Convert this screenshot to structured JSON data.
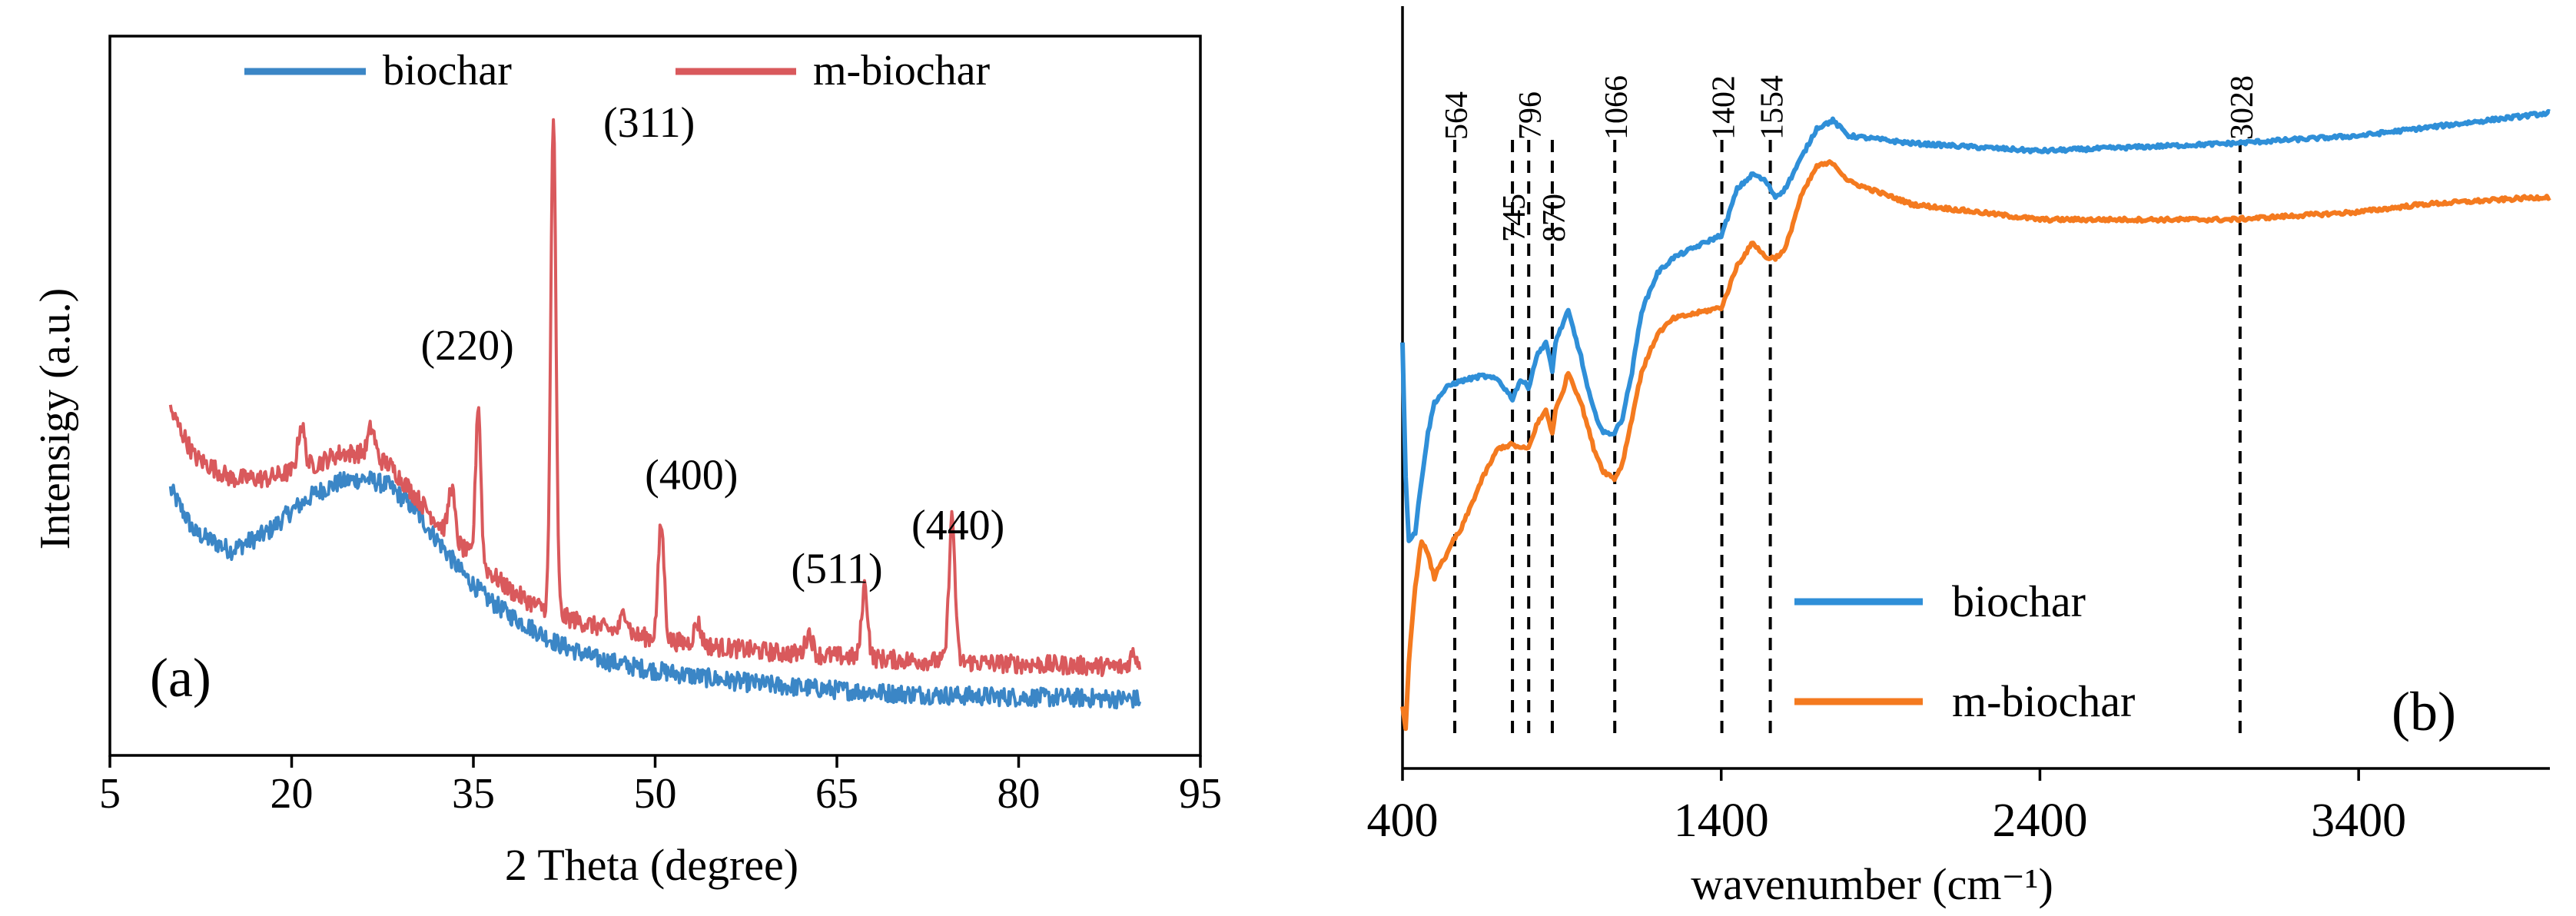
{
  "colors": {
    "axis": "#000000",
    "biochar_a": "#3b86c6",
    "m_biochar_a": "#d9595c",
    "biochar_b": "#2f8fd8",
    "m_biochar_b": "#f47a1f"
  },
  "chart_data": [
    {
      "panel_label": "(a)",
      "type": "line",
      "title": "",
      "xlabel": "2 Theta (degree)",
      "ylabel": "Intensigy (a.u.)",
      "xlim": [
        5,
        95
      ],
      "ylim": [
        0,
        100
      ],
      "xticks": [
        5,
        20,
        35,
        50,
        65,
        80,
        95
      ],
      "grid": false,
      "legend_position": "top",
      "yticks_shown": false,
      "series": [
        {
          "name": "biochar",
          "color_key": "biochar_a",
          "noisy": true,
          "x": [
            10,
            12,
            15,
            18,
            20,
            22,
            24,
            26,
            28,
            30,
            32,
            34,
            36,
            38,
            40,
            42,
            45,
            48,
            50,
            55,
            60,
            65,
            70,
            75,
            80,
            85,
            90
          ],
          "y": [
            37,
            31,
            28.5,
            31,
            34,
            36.5,
            38,
            38.5,
            37.5,
            34.5,
            30,
            25.5,
            22,
            19.5,
            17.5,
            15.5,
            13.5,
            12.4,
            11.8,
            10.6,
            9.7,
            9.1,
            8.6,
            8.3,
            8.1,
            8,
            7.8
          ]
        },
        {
          "name": "m-biochar",
          "color_key": "m_biochar_a",
          "noisy": true,
          "x": [
            10,
            12,
            15,
            18,
            20,
            22,
            24,
            26,
            28,
            30,
            32,
            34,
            36,
            38,
            40,
            42,
            45,
            48,
            50,
            55,
            60,
            65,
            70,
            75,
            80,
            85,
            90
          ],
          "y": [
            48,
            41.5,
            38.5,
            38.5,
            39.5,
            40.5,
            42,
            42,
            40.5,
            36.5,
            32.5,
            29,
            26,
            23,
            21,
            19.5,
            18,
            16.8,
            16.2,
            15.1,
            14.3,
            13.8,
            13.3,
            13,
            12.7,
            12.5,
            12.2
          ]
        }
      ],
      "peaks": [
        {
          "series": "m-biochar",
          "x": 20.8,
          "height": 6,
          "width": 0.4
        },
        {
          "series": "m-biochar",
          "x": 26.6,
          "height": 4,
          "width": 0.4
        },
        {
          "series": "m-biochar",
          "x": 33.2,
          "height": 7,
          "width": 0.35
        },
        {
          "series": "m-biochar",
          "x": 35.4,
          "height": 22,
          "width": 0.3
        },
        {
          "series": "m-biochar",
          "x": 41.6,
          "height": 69,
          "width": 0.3
        },
        {
          "series": "m-biochar",
          "x": 47.5,
          "height": 3,
          "width": 0.4
        },
        {
          "series": "m-biochar",
          "x": 50.5,
          "height": 16,
          "width": 0.35
        },
        {
          "series": "m-biochar",
          "x": 53.5,
          "height": 3,
          "width": 0.4
        },
        {
          "series": "m-biochar",
          "x": 62.7,
          "height": 3,
          "width": 0.4
        },
        {
          "series": "m-biochar",
          "x": 67.3,
          "height": 10,
          "width": 0.35
        },
        {
          "series": "m-biochar",
          "x": 74.5,
          "height": 20,
          "width": 0.35
        },
        {
          "series": "m-biochar",
          "x": 89.5,
          "height": 2,
          "width": 0.4
        }
      ],
      "annotations": [
        {
          "text": "(311)",
          "x": 49.5,
          "y": 86
        },
        {
          "text": "(220)",
          "x": 34.5,
          "y": 55
        },
        {
          "text": "(400)",
          "x": 53,
          "y": 37
        },
        {
          "text": "(511)",
          "x": 65,
          "y": 24
        },
        {
          "text": "(440)",
          "x": 75,
          "y": 30
        }
      ]
    },
    {
      "panel_label": "(b)",
      "type": "line",
      "title": "",
      "xlabel": "wavenumber (cm⁻¹)",
      "ylabel": "",
      "xlim": [
        400,
        4000
      ],
      "ylim": [
        0,
        100
      ],
      "xticks": [
        400,
        1400,
        2400,
        3400
      ],
      "grid": false,
      "legend_position": "bottom-right",
      "yticks_shown": false,
      "series": [
        {
          "name": "biochar",
          "color_key": "biochar_b",
          "noisy": false,
          "x": [
            400,
            410,
            420,
            440,
            460,
            480,
            500,
            520,
            540,
            560,
            600,
            650,
            700,
            745,
            770,
            796,
            820,
            850,
            870,
            880,
            900,
            920,
            940,
            960,
            980,
            1000,
            1030,
            1066,
            1090,
            1120,
            1150,
            1200,
            1250,
            1300,
            1350,
            1402,
            1450,
            1500,
            1540,
            1570,
            1600,
            1650,
            1700,
            1750,
            1800,
            2000,
            2400,
            3000,
            3400,
            3600,
            4000
          ],
          "y": [
            56,
            38,
            30,
            31,
            38,
            44,
            48,
            49,
            50,
            50.5,
            51,
            51.5,
            51,
            48.5,
            51,
            50,
            54,
            56,
            52,
            56,
            58,
            60,
            57,
            54,
            50,
            47,
            44,
            44,
            46,
            52,
            60,
            65,
            67,
            68,
            69,
            70,
            76,
            78,
            77,
            75,
            76,
            80,
            84,
            85,
            83,
            82,
            81,
            82,
            83,
            84,
            86
          ]
        },
        {
          "name": "m-biochar",
          "color_key": "m_biochar_b",
          "noisy": false,
          "x": [
            400,
            410,
            420,
            440,
            460,
            480,
            500,
            520,
            540,
            560,
            580,
            600,
            650,
            700,
            745,
            770,
            796,
            820,
            850,
            870,
            880,
            900,
            920,
            940,
            960,
            980,
            1000,
            1030,
            1066,
            1090,
            1120,
            1150,
            1200,
            1250,
            1300,
            1350,
            1402,
            1450,
            1500,
            1540,
            1570,
            1600,
            1650,
            1700,
            1750,
            1800,
            2000,
            2400,
            3000,
            3400,
            3600,
            4000
          ],
          "y": [
            8,
            5,
            14,
            24,
            30,
            28,
            25,
            27,
            28,
            30,
            31,
            33,
            38,
            42,
            42.5,
            42,
            42,
            45,
            47,
            44,
            47,
            49,
            52,
            50,
            48,
            45,
            42,
            39,
            38,
            40,
            46,
            52,
            57,
            59,
            59.5,
            60,
            60.5,
            66,
            69,
            67,
            67,
            68,
            75,
            79,
            79.5,
            77,
            74,
            72,
            72,
            73,
            74,
            75
          ]
        }
      ],
      "vlines": [
        {
          "x": 564,
          "label": "564"
        },
        {
          "x": 745,
          "label": "745"
        },
        {
          "x": 796,
          "label": "796"
        },
        {
          "x": 870,
          "label": "870"
        },
        {
          "x": 1066,
          "label": "1066"
        },
        {
          "x": 1402,
          "label": "1402"
        },
        {
          "x": 1554,
          "label": "1554"
        },
        {
          "x": 3028,
          "label": "3028"
        }
      ]
    }
  ]
}
